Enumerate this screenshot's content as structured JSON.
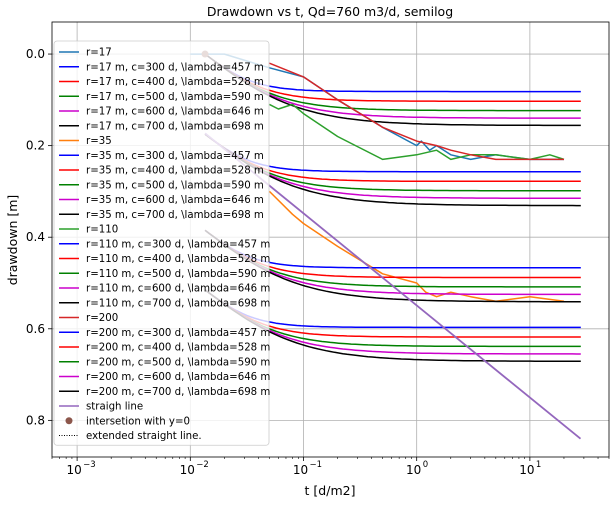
{
  "chart_data": {
    "type": "line",
    "title": "Drawdown vs t, Qd=760 m3/d, semilog",
    "xlabel": "t [d/m2]",
    "ylabel": "drawdown [m]",
    "xscale": "log",
    "xlim": [
      0.0006,
      50
    ],
    "ylim": [
      0.88,
      -0.07
    ],
    "y_inverted": true,
    "grid": true,
    "legend_location": "left",
    "x_ticks": [
      {
        "value": 0.001,
        "label": "10"
      },
      {
        "value": 0.01,
        "label": "10"
      },
      {
        "value": 0.1,
        "label": "10"
      },
      {
        "value": 1,
        "label": "10"
      },
      {
        "value": 10,
        "label": "10"
      }
    ],
    "x_tick_exponents": [
      "−3",
      "−2",
      "−1",
      "0",
      "1"
    ],
    "y_ticks": [
      {
        "value": 0.0,
        "label": "0.0"
      },
      {
        "value": 0.2,
        "label": "0.2"
      },
      {
        "value": 0.4,
        "label": "0.4"
      },
      {
        "value": 0.6,
        "label": "0.6"
      },
      {
        "value": 0.8,
        "label": "0.8"
      }
    ],
    "series": [
      {
        "name": "r=17",
        "color": "#1f77b4",
        "kind": "data",
        "x": [
          0.01,
          0.02,
          0.05,
          0.1,
          0.2,
          0.5,
          1,
          1.1,
          1.3,
          1.5,
          2,
          3,
          5,
          10,
          20
        ],
        "y": [
          0.0,
          0.0,
          0.03,
          0.05,
          0.1,
          0.16,
          0.2,
          0.19,
          0.21,
          0.2,
          0.22,
          0.23,
          0.22,
          0.23,
          0.23
        ]
      },
      {
        "name": "r=17 m, c=300 d, \\lambda=457 m",
        "color": "#0000ff",
        "kind": "model",
        "x0": 0.0135,
        "yl": 0.0,
        "K": 0.0819,
        "slope": 0.1842
      },
      {
        "name": "r=17 m, c=400 d, \\lambda=528 m",
        "color": "#ff0000",
        "kind": "model",
        "x0": 0.0135,
        "yl": 0.0,
        "K": 0.103,
        "slope": 0.1842
      },
      {
        "name": "r=17 m, c=500 d, \\lambda=590 m",
        "color": "#008000",
        "kind": "model",
        "x0": 0.0135,
        "yl": 0.0,
        "K": 0.1235,
        "slope": 0.1842
      },
      {
        "name": "r=17 m, c=600 d, \\lambda=646 m",
        "color": "#cc00cc",
        "kind": "model",
        "x0": 0.0135,
        "yl": 0.0,
        "K": 0.14,
        "slope": 0.1842
      },
      {
        "name": "r=17 m, c=700 d, \\lambda=698 m",
        "color": "#000000",
        "kind": "model",
        "x0": 0.0135,
        "yl": 0.0,
        "K": 0.156,
        "slope": 0.1842
      },
      {
        "name": "r=35",
        "color": "#ff7f0e",
        "kind": "data",
        "x": [
          0.05,
          0.08,
          0.1,
          0.2,
          0.5,
          1,
          1.2,
          1.5,
          2,
          3,
          5,
          10,
          20
        ],
        "y": [
          0.3,
          0.35,
          0.37,
          0.42,
          0.48,
          0.5,
          0.52,
          0.53,
          0.52,
          0.53,
          0.54,
          0.53,
          0.54
        ]
      },
      {
        "name": "r=35 m, c=300 d, \\lambda=457 m",
        "color": "#0000ff",
        "kind": "model",
        "x0": 0.0135,
        "yl": 0.175,
        "K": 0.0819,
        "slope": 0.1842
      },
      {
        "name": "r=35 m, c=400 d, \\lambda=528 m",
        "color": "#ff0000",
        "kind": "model",
        "x0": 0.0135,
        "yl": 0.175,
        "K": 0.103,
        "slope": 0.1842
      },
      {
        "name": "r=35 m, c=500 d, \\lambda=590 m",
        "color": "#008000",
        "kind": "model",
        "x0": 0.0135,
        "yl": 0.175,
        "K": 0.1235,
        "slope": 0.1842
      },
      {
        "name": "r=35 m, c=600 d, \\lambda=646 m",
        "color": "#cc00cc",
        "kind": "model",
        "x0": 0.0135,
        "yl": 0.175,
        "K": 0.14,
        "slope": 0.1842
      },
      {
        "name": "r=35 m, c=700 d, \\lambda=698 m",
        "color": "#000000",
        "kind": "model",
        "x0": 0.0135,
        "yl": 0.175,
        "K": 0.156,
        "slope": 0.1842
      },
      {
        "name": "r=110",
        "color": "#2ca02c",
        "kind": "data",
        "x": [
          0.05,
          0.06,
          0.08,
          0.1,
          0.2,
          0.5,
          1,
          1.5,
          2,
          3,
          5,
          10,
          15,
          20
        ],
        "y": [
          0.11,
          0.12,
          0.11,
          0.13,
          0.18,
          0.23,
          0.22,
          0.21,
          0.23,
          0.22,
          0.22,
          0.23,
          0.22,
          0.23
        ]
      },
      {
        "name": "r=110 m, c=300 d, \\lambda=457 m",
        "color": "#0000ff",
        "kind": "model",
        "x0": 0.0135,
        "yl": 0.385,
        "K": 0.0819,
        "slope": 0.1842
      },
      {
        "name": "r=110 m, c=400 d, \\lambda=528 m",
        "color": "#ff0000",
        "kind": "model",
        "x0": 0.0135,
        "yl": 0.385,
        "K": 0.103,
        "slope": 0.1842
      },
      {
        "name": "r=110 m, c=500 d, \\lambda=590 m",
        "color": "#008000",
        "kind": "model",
        "x0": 0.0135,
        "yl": 0.385,
        "K": 0.1235,
        "slope": 0.1842
      },
      {
        "name": "r=110 m, c=600 d, \\lambda=646 m",
        "color": "#cc00cc",
        "kind": "model",
        "x0": 0.0135,
        "yl": 0.385,
        "K": 0.14,
        "slope": 0.1842
      },
      {
        "name": "r=110 m, c=700 d, \\lambda=698 m",
        "color": "#000000",
        "kind": "model",
        "x0": 0.0135,
        "yl": 0.385,
        "K": 0.156,
        "slope": 0.1842
      },
      {
        "name": "r=200",
        "color": "#d62728",
        "kind": "data",
        "x": [
          0.05,
          0.1,
          0.2,
          0.5,
          1,
          1.5,
          2,
          3,
          5,
          10,
          20
        ],
        "y": [
          0.02,
          0.05,
          0.1,
          0.16,
          0.19,
          0.2,
          0.21,
          0.22,
          0.23,
          0.23,
          0.23
        ]
      },
      {
        "name": "r=200 m, c=300 d, \\lambda=457 m",
        "color": "#0000ff",
        "kind": "model",
        "x0": 0.0135,
        "yl": 0.515,
        "K": 0.0819,
        "slope": 0.1842
      },
      {
        "name": "r=200 m, c=400 d, \\lambda=528 m",
        "color": "#ff0000",
        "kind": "model",
        "x0": 0.0135,
        "yl": 0.515,
        "K": 0.103,
        "slope": 0.1842
      },
      {
        "name": "r=200 m, c=500 d, \\lambda=590 m",
        "color": "#008000",
        "kind": "model",
        "x0": 0.0135,
        "yl": 0.515,
        "K": 0.1235,
        "slope": 0.1842
      },
      {
        "name": "r=200 m, c=600 d, \\lambda=646 m",
        "color": "#cc00cc",
        "kind": "model",
        "x0": 0.0135,
        "yl": 0.515,
        "K": 0.14,
        "slope": 0.1842
      },
      {
        "name": "r=200 m, c=700 d, \\lambda=698 m",
        "color": "#000000",
        "kind": "model",
        "x0": 0.0135,
        "yl": 0.515,
        "K": 0.156,
        "slope": 0.1842
      },
      {
        "name": "straigh line",
        "color": "#9467bd",
        "kind": "straight",
        "x": [
          0.0135,
          28
        ],
        "y": [
          0.173,
          0.84
        ]
      }
    ],
    "intersection": {
      "name": "intersetion with y=0",
      "color": "#8c564b",
      "x": 0.0135,
      "y": 0.0
    },
    "extended_line": {
      "name": "extended straight line.",
      "color": "#000000"
    },
    "legend_entries": [
      {
        "label": "r=17",
        "color": "#1f77b4",
        "kind": "line"
      },
      {
        "label": "r=17 m, c=300 d, \\lambda=457 m",
        "color": "#0000ff",
        "kind": "line"
      },
      {
        "label": "r=17 m, c=400 d, \\lambda=528 m",
        "color": "#ff0000",
        "kind": "line"
      },
      {
        "label": "r=17 m, c=500 d, \\lambda=590 m",
        "color": "#008000",
        "kind": "line"
      },
      {
        "label": "r=17 m, c=600 d, \\lambda=646 m",
        "color": "#cc00cc",
        "kind": "line"
      },
      {
        "label": "r=17 m, c=700 d, \\lambda=698 m",
        "color": "#000000",
        "kind": "line"
      },
      {
        "label": "r=35",
        "color": "#ff7f0e",
        "kind": "line"
      },
      {
        "label": "r=35 m, c=300 d, \\lambda=457 m",
        "color": "#0000ff",
        "kind": "line"
      },
      {
        "label": "r=35 m, c=400 d, \\lambda=528 m",
        "color": "#ff0000",
        "kind": "line"
      },
      {
        "label": "r=35 m, c=500 d, \\lambda=590 m",
        "color": "#008000",
        "kind": "line"
      },
      {
        "label": "r=35 m, c=600 d, \\lambda=646 m",
        "color": "#cc00cc",
        "kind": "line"
      },
      {
        "label": "r=35 m, c=700 d, \\lambda=698 m",
        "color": "#000000",
        "kind": "line"
      },
      {
        "label": "r=110",
        "color": "#2ca02c",
        "kind": "line"
      },
      {
        "label": "r=110 m, c=300 d, \\lambda=457 m",
        "color": "#0000ff",
        "kind": "line"
      },
      {
        "label": "r=110 m, c=400 d, \\lambda=528 m",
        "color": "#ff0000",
        "kind": "line"
      },
      {
        "label": "r=110 m, c=500 d, \\lambda=590 m",
        "color": "#008000",
        "kind": "line"
      },
      {
        "label": "r=110 m, c=600 d, \\lambda=646 m",
        "color": "#cc00cc",
        "kind": "line"
      },
      {
        "label": "r=110 m, c=700 d, \\lambda=698 m",
        "color": "#000000",
        "kind": "line"
      },
      {
        "label": "r=200",
        "color": "#d62728",
        "kind": "line"
      },
      {
        "label": "r=200 m, c=300 d, \\lambda=457 m",
        "color": "#0000ff",
        "kind": "line"
      },
      {
        "label": "r=200 m, c=400 d, \\lambda=528 m",
        "color": "#ff0000",
        "kind": "line"
      },
      {
        "label": "r=200 m, c=500 d, \\lambda=590 m",
        "color": "#008000",
        "kind": "line"
      },
      {
        "label": "r=200 m, c=600 d, \\lambda=646 m",
        "color": "#cc00cc",
        "kind": "line"
      },
      {
        "label": "r=200 m, c=700 d, \\lambda=698 m",
        "color": "#000000",
        "kind": "line"
      },
      {
        "label": "straigh line",
        "color": "#9467bd",
        "kind": "line"
      },
      {
        "label": "intersetion with y=0",
        "color": "#8c564b",
        "kind": "dot"
      },
      {
        "label": "extended straight line.",
        "color": "#000000",
        "kind": "dotted"
      }
    ]
  }
}
